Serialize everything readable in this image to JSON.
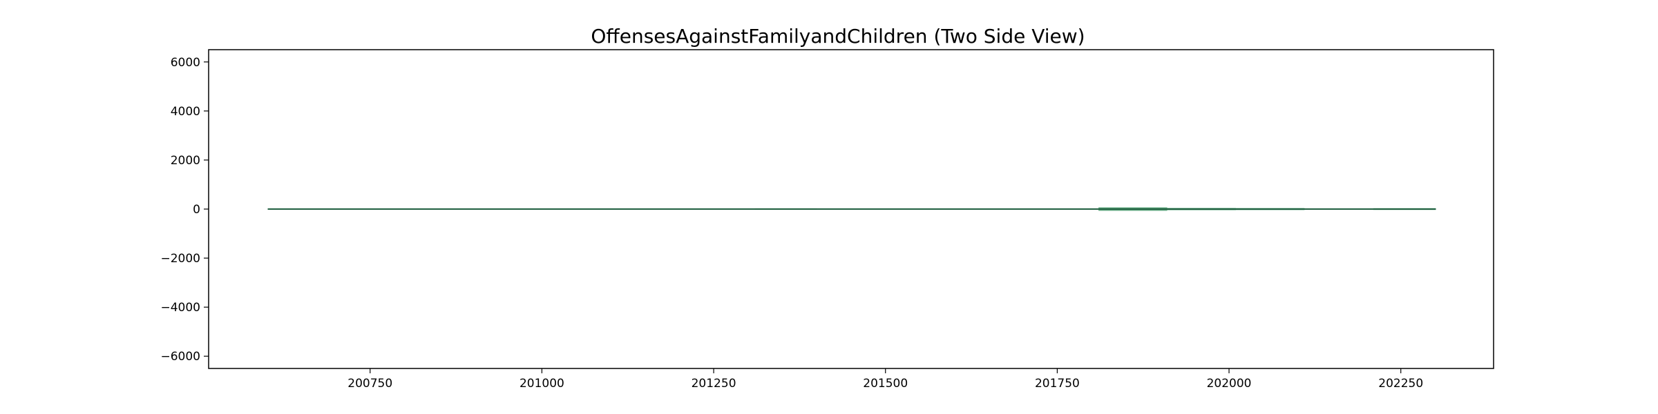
{
  "chart_data": {
    "type": "area",
    "title": "OffensesAgainstFamilyandChildren (Two Side View)",
    "xlabel": "",
    "ylabel": "",
    "xlim": [
      200515,
      202385
    ],
    "ylim": [
      -6500,
      6500
    ],
    "x_ticks": [
      200750,
      201000,
      201250,
      201500,
      201750,
      202000,
      202250
    ],
    "x_tick_labels": [
      "200750",
      "201000",
      "201250",
      "201500",
      "201750",
      "202000",
      "202250"
    ],
    "y_ticks": [
      -6000,
      -4000,
      -2000,
      0,
      2000,
      4000,
      6000
    ],
    "y_tick_labels": [
      "−6000",
      "−4000",
      "−2000",
      "0",
      "2000",
      "4000",
      "6000"
    ],
    "x_range": [
      200601,
      202301
    ],
    "grid": false,
    "colors": {
      "fill": "#2e8b57",
      "line": "#1f5f3f",
      "axis": "#000000"
    },
    "segments": [
      {
        "x_start": 200601,
        "x_end": 200700,
        "value": 15
      },
      {
        "x_start": 200700,
        "x_end": 200800,
        "value": 20
      },
      {
        "x_start": 200800,
        "x_end": 200910,
        "value": 25
      },
      {
        "x_start": 200910,
        "x_end": 201010,
        "value": 15
      },
      {
        "x_start": 201010,
        "x_end": 201100,
        "value": 25
      },
      {
        "x_start": 201100,
        "x_end": 201200,
        "value": 15
      },
      {
        "x_start": 201200,
        "x_end": 201310,
        "value": 20
      },
      {
        "x_start": 201310,
        "x_end": 201400,
        "value": 30
      },
      {
        "x_start": 201400,
        "x_end": 201500,
        "value": 15
      },
      {
        "x_start": 201500,
        "x_end": 201600,
        "value": 20
      },
      {
        "x_start": 201600,
        "x_end": 201700,
        "value": 25
      },
      {
        "x_start": 201700,
        "x_end": 201810,
        "value": 15
      },
      {
        "x_start": 201810,
        "x_end": 201910,
        "value": 70
      },
      {
        "x_start": 201910,
        "x_end": 202010,
        "value": 45
      },
      {
        "x_start": 202010,
        "x_end": 202110,
        "value": 40
      },
      {
        "x_start": 202110,
        "x_end": 202210,
        "value": 15
      },
      {
        "x_start": 202210,
        "x_end": 202301,
        "value": 35
      }
    ]
  }
}
